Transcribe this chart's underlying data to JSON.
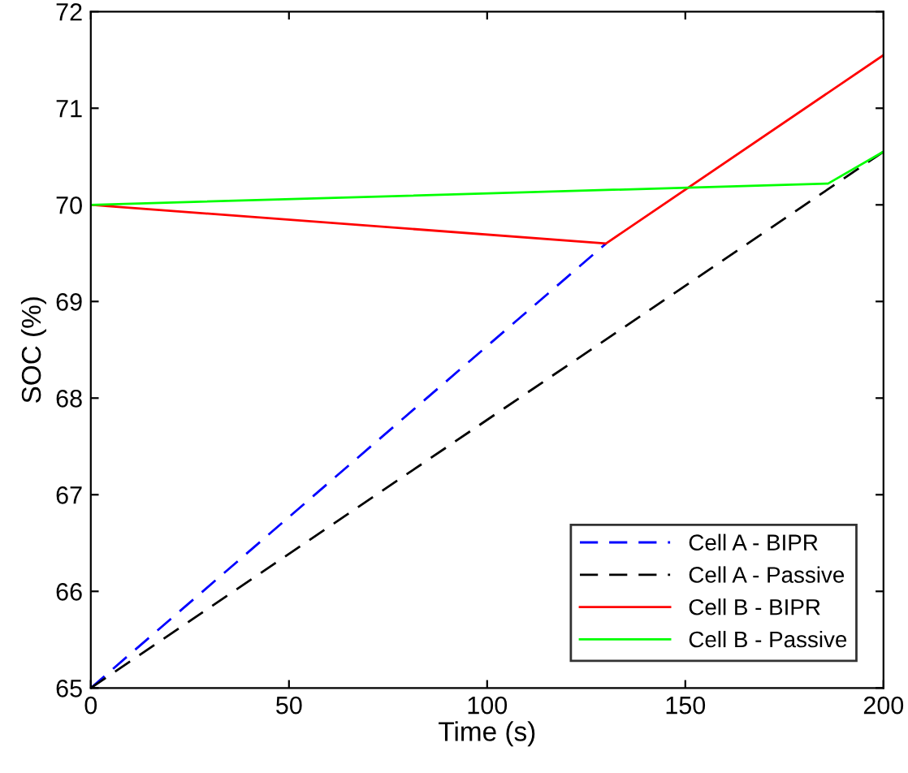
{
  "chart_data": {
    "type": "line",
    "xlabel": "Time (s)",
    "ylabel": "SOC (%)",
    "xlim": [
      0,
      200
    ],
    "ylim": [
      65,
      72
    ],
    "xticks": [
      0,
      50,
      100,
      150,
      200
    ],
    "yticks": [
      65,
      66,
      67,
      68,
      69,
      70,
      71,
      72
    ],
    "grid": false,
    "legend": "bottom right",
    "marker": "none",
    "series": [
      {
        "name": "Cell A - BIPR",
        "color": "#0000ff",
        "line_style": "dashed",
        "x": [
          0,
          130
        ],
        "values": [
          65,
          69.6
        ]
      },
      {
        "name": "Cell A - Passive",
        "color": "#000000",
        "line_style": "dashed",
        "x": [
          0,
          200
        ],
        "values": [
          65,
          70.55
        ]
      },
      {
        "name": "Cell B - BIPR",
        "color": "#ff0000",
        "line_style": "solid",
        "x": [
          0,
          130,
          200
        ],
        "values": [
          70,
          69.6,
          71.55
        ]
      },
      {
        "name": "Cell B - Passive",
        "color": "#00ff00",
        "line_style": "solid",
        "x": [
          0,
          186,
          200
        ],
        "values": [
          70,
          70.22,
          70.55
        ]
      }
    ]
  }
}
